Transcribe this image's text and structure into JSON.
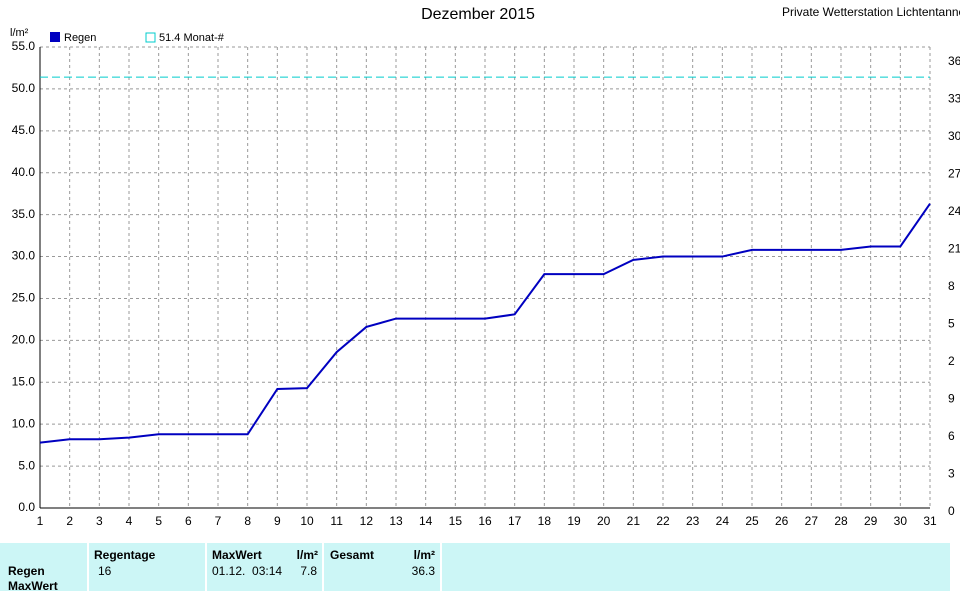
{
  "chart_data": {
    "type": "line",
    "title": "Dezember 2015",
    "station": "Private Wetterstation Lichtentanne ı L",
    "y_axis_label": "l/m²",
    "x": [
      1,
      2,
      3,
      4,
      5,
      6,
      7,
      8,
      9,
      10,
      11,
      12,
      13,
      14,
      15,
      16,
      17,
      18,
      19,
      20,
      21,
      22,
      23,
      24,
      25,
      26,
      27,
      28,
      29,
      30,
      31
    ],
    "series": [
      {
        "name": "Regen",
        "color": "#0000c0",
        "values": [
          7.8,
          8.2,
          8.2,
          8.4,
          8.8,
          8.8,
          8.8,
          8.8,
          14.2,
          14.3,
          18.6,
          21.6,
          22.6,
          22.6,
          22.6,
          22.6,
          23.1,
          27.9,
          27.9,
          27.9,
          29.6,
          30.0,
          30.0,
          30.0,
          30.8,
          30.8,
          30.8,
          30.8,
          31.2,
          31.2,
          36.3
        ]
      }
    ],
    "reference_line": {
      "label": "51.4 Monat-#",
      "value": 51.4,
      "color": "#00cccc"
    },
    "xlim": [
      1,
      31
    ],
    "xticks": [
      1,
      2,
      3,
      4,
      5,
      6,
      7,
      8,
      9,
      10,
      11,
      12,
      13,
      14,
      15,
      16,
      17,
      18,
      19,
      20,
      21,
      22,
      23,
      24,
      25,
      26,
      27,
      28,
      29,
      30,
      31
    ],
    "ylim": [
      0,
      55
    ],
    "yticks": [
      {
        "value": 0,
        "label": "0.0"
      },
      {
        "value": 5,
        "label": "5.0"
      },
      {
        "value": 10,
        "label": "10.0"
      },
      {
        "value": 15,
        "label": "15.0"
      },
      {
        "value": 20,
        "label": "20.0"
      },
      {
        "value": 25,
        "label": "25.0"
      },
      {
        "value": 30,
        "label": "30.0"
      },
      {
        "value": 35,
        "label": "35.0"
      },
      {
        "value": 40,
        "label": "40.0"
      },
      {
        "value": 45,
        "label": "45.0"
      },
      {
        "value": 50,
        "label": "50.0"
      },
      {
        "value": 55,
        "label": "55.0"
      }
    ],
    "right_axis_labels": [
      "36",
      "33",
      "30",
      "27",
      "24",
      "21",
      "8",
      "5",
      "2",
      "9",
      "6",
      "3",
      "0"
    ],
    "grid": true
  },
  "table": {
    "row_labels": [
      "Regen",
      "MaxWert"
    ],
    "headers": [
      "Regentage",
      "MaxWert",
      "l/m²",
      "Gesamt",
      "l/m²"
    ],
    "rows": [
      [
        "16",
        "01.12.  03:14",
        "7.8",
        "36.3"
      ]
    ]
  }
}
